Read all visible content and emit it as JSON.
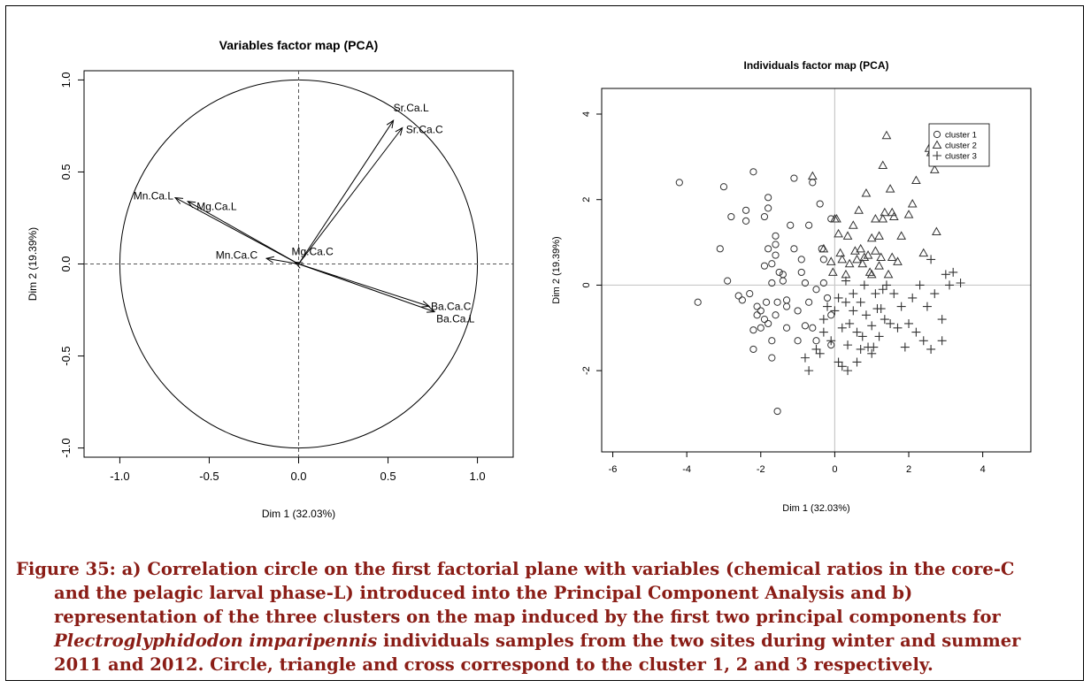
{
  "colors": {
    "caption": "#8a1d16",
    "axis": "#000000",
    "refline": "#c8c8c8"
  },
  "chart_data": [
    {
      "type": "scatter",
      "subtype": "pca-correlation-circle",
      "title": "Variables factor map (PCA)",
      "xlabel": "Dim 1 (32.03%)",
      "ylabel": "Dim 2 (19.39%)",
      "xlim": [
        -1.2,
        1.2
      ],
      "ylim": [
        -1.05,
        1.05
      ],
      "xticks": [
        "-1.0",
        "-0.5",
        "0.0",
        "0.5",
        "1.0"
      ],
      "yticks": [
        "-1.0",
        "-0.5",
        "0.0",
        "0.5",
        "1.0"
      ],
      "unit_circle": true,
      "vectors": [
        {
          "name": "Sr.Ca.L",
          "x": 0.53,
          "y": 0.78
        },
        {
          "name": "Sr.Ca.C",
          "x": 0.58,
          "y": 0.74
        },
        {
          "name": "Mn.Ca.L",
          "x": -0.69,
          "y": 0.36
        },
        {
          "name": "Mg.Ca.L",
          "x": -0.62,
          "y": 0.34
        },
        {
          "name": "Mn.Ca.C",
          "x": -0.18,
          "y": 0.03
        },
        {
          "name": "Mg.Ca.C",
          "x": -0.02,
          "y": 0.01
        },
        {
          "name": "Ba.Ca.C",
          "x": 0.73,
          "y": -0.23
        },
        {
          "name": "Ba.Ca.L",
          "x": 0.76,
          "y": -0.26
        }
      ]
    },
    {
      "type": "scatter",
      "title": "Individuals factor map (PCA)",
      "xlabel": "Dim 1 (32.03%)",
      "ylabel": "Dim 2 (19.39%)",
      "xlim": [
        -6.3,
        5.3
      ],
      "ylim": [
        -3.9,
        4.6
      ],
      "xticks": [
        "-6",
        "-4",
        "-2",
        "0",
        "2",
        "4"
      ],
      "yticks": [
        "-2",
        "0",
        "2",
        "4"
      ],
      "legend_position": "top-right",
      "series": [
        {
          "name": "cluster 1",
          "marker": "circle",
          "points": [
            [
              -4.2,
              2.4
            ],
            [
              -3.7,
              -0.4
            ],
            [
              -3.1,
              0.85
            ],
            [
              -3.0,
              2.3
            ],
            [
              -2.9,
              0.1
            ],
            [
              -2.8,
              1.6
            ],
            [
              -2.5,
              -0.35
            ],
            [
              -2.4,
              1.75
            ],
            [
              -2.4,
              1.5
            ],
            [
              -2.3,
              -0.2
            ],
            [
              -2.2,
              2.65
            ],
            [
              -2.2,
              -1.05
            ],
            [
              -2.2,
              -1.5
            ],
            [
              -2.1,
              -0.5
            ],
            [
              -2.1,
              -0.7
            ],
            [
              -2.0,
              -0.6
            ],
            [
              -1.9,
              1.6
            ],
            [
              -1.9,
              0.45
            ],
            [
              -1.9,
              -0.8
            ],
            [
              -1.85,
              -0.4
            ],
            [
              -1.8,
              2.05
            ],
            [
              -1.8,
              1.8
            ],
            [
              -1.8,
              0.85
            ],
            [
              -1.8,
              -0.9
            ],
            [
              -1.7,
              -1.3
            ],
            [
              -1.7,
              -1.7
            ],
            [
              -1.7,
              0.05
            ],
            [
              -1.6,
              0.95
            ],
            [
              -1.6,
              0.7
            ],
            [
              -1.6,
              1.15
            ],
            [
              -1.6,
              -0.7
            ],
            [
              -1.55,
              -0.4
            ],
            [
              -1.5,
              0.3
            ],
            [
              -1.4,
              0.1
            ],
            [
              -1.4,
              0.25
            ],
            [
              -1.3,
              -0.5
            ],
            [
              -1.3,
              -1.0
            ],
            [
              -1.2,
              1.4
            ],
            [
              -1.1,
              2.5
            ],
            [
              -1.1,
              0.85
            ],
            [
              -1.0,
              -0.6
            ],
            [
              -1.0,
              -1.3
            ],
            [
              -0.9,
              0.3
            ],
            [
              -0.9,
              0.6
            ],
            [
              -0.8,
              -0.95
            ],
            [
              -0.7,
              -0.4
            ],
            [
              -0.7,
              1.4
            ],
            [
              -0.6,
              2.4
            ],
            [
              -0.5,
              -0.1
            ],
            [
              -0.5,
              -1.3
            ],
            [
              -0.4,
              1.9
            ],
            [
              -0.35,
              0.85
            ],
            [
              -0.3,
              0.6
            ],
            [
              -0.3,
              0.05
            ],
            [
              -0.2,
              -0.3
            ],
            [
              -0.1,
              1.55
            ],
            [
              -0.1,
              -0.7
            ],
            [
              -0.1,
              -1.4
            ],
            [
              -2.6,
              -0.25
            ],
            [
              -1.55,
              -2.95
            ],
            [
              -0.6,
              -1.0
            ],
            [
              -1.3,
              -0.35
            ],
            [
              -1.7,
              0.5
            ],
            [
              -0.8,
              0.05
            ],
            [
              -2.0,
              -1.0
            ]
          ]
        },
        {
          "name": "cluster 2",
          "marker": "triangle",
          "points": [
            [
              -0.6,
              2.55
            ],
            [
              -0.3,
              0.85
            ],
            [
              -0.1,
              0.55
            ],
            [
              0.0,
              1.55
            ],
            [
              0.05,
              1.55
            ],
            [
              0.1,
              1.2
            ],
            [
              0.2,
              0.6
            ],
            [
              0.3,
              0.25
            ],
            [
              0.4,
              0.5
            ],
            [
              0.5,
              1.4
            ],
            [
              0.6,
              0.6
            ],
            [
              0.7,
              0.85
            ],
            [
              0.75,
              0.5
            ],
            [
              0.8,
              0.65
            ],
            [
              0.9,
              0.7
            ],
            [
              1.0,
              1.1
            ],
            [
              1.0,
              0.25
            ],
            [
              1.1,
              0.8
            ],
            [
              1.2,
              1.15
            ],
            [
              1.2,
              0.45
            ],
            [
              1.3,
              2.8
            ],
            [
              1.3,
              1.55
            ],
            [
              1.35,
              1.7
            ],
            [
              1.4,
              3.5
            ],
            [
              1.45,
              0.25
            ],
            [
              1.5,
              2.25
            ],
            [
              1.55,
              1.7
            ],
            [
              1.6,
              1.6
            ],
            [
              1.7,
              0.55
            ],
            [
              1.8,
              1.15
            ],
            [
              2.0,
              1.65
            ],
            [
              2.1,
              1.9
            ],
            [
              2.2,
              2.45
            ],
            [
              2.4,
              0.75
            ],
            [
              2.55,
              3.2
            ],
            [
              2.6,
              3.1
            ],
            [
              2.7,
              2.7
            ],
            [
              2.75,
              1.25
            ],
            [
              0.55,
              0.8
            ],
            [
              1.55,
              0.65
            ],
            [
              0.85,
              2.15
            ],
            [
              -0.05,
              0.3
            ],
            [
              0.95,
              0.3
            ],
            [
              0.35,
              1.15
            ],
            [
              1.1,
              1.55
            ],
            [
              1.25,
              0.65
            ],
            [
              0.65,
              1.75
            ],
            [
              0.15,
              0.75
            ]
          ]
        },
        {
          "name": "cluster 3",
          "marker": "cross",
          "points": [
            [
              -0.8,
              -1.7
            ],
            [
              -0.7,
              -2.0
            ],
            [
              -0.5,
              -1.5
            ],
            [
              -0.4,
              -1.6
            ],
            [
              -0.3,
              -0.8
            ],
            [
              -0.3,
              -1.1
            ],
            [
              -0.2,
              -0.5
            ],
            [
              -0.1,
              -1.3
            ],
            [
              0.0,
              -0.6
            ],
            [
              0.1,
              -1.8
            ],
            [
              0.1,
              -0.3
            ],
            [
              0.2,
              -1.0
            ],
            [
              0.2,
              -1.9
            ],
            [
              0.3,
              0.1
            ],
            [
              0.3,
              -0.4
            ],
            [
              0.35,
              -1.4
            ],
            [
              0.4,
              -0.9
            ],
            [
              0.5,
              -0.2
            ],
            [
              0.5,
              -0.6
            ],
            [
              0.6,
              -1.1
            ],
            [
              0.6,
              -1.8
            ],
            [
              0.7,
              -0.4
            ],
            [
              0.7,
              -1.5
            ],
            [
              0.8,
              0.0
            ],
            [
              0.85,
              -0.7
            ],
            [
              0.9,
              -1.45
            ],
            [
              1.0,
              -1.6
            ],
            [
              1.0,
              -0.95
            ],
            [
              1.1,
              -0.2
            ],
            [
              1.15,
              -0.55
            ],
            [
              1.2,
              -1.2
            ],
            [
              1.3,
              -0.1
            ],
            [
              1.35,
              -0.8
            ],
            [
              1.4,
              0.0
            ],
            [
              1.5,
              -0.9
            ],
            [
              1.6,
              -0.2
            ],
            [
              1.7,
              -1.0
            ],
            [
              1.8,
              -0.5
            ],
            [
              1.9,
              -1.45
            ],
            [
              2.0,
              -0.9
            ],
            [
              2.1,
              -0.3
            ],
            [
              2.2,
              -1.1
            ],
            [
              2.3,
              0.0
            ],
            [
              2.4,
              -1.3
            ],
            [
              2.5,
              -0.5
            ],
            [
              2.6,
              0.6
            ],
            [
              2.6,
              -1.5
            ],
            [
              2.7,
              -0.2
            ],
            [
              2.9,
              -0.8
            ],
            [
              2.9,
              -1.3
            ],
            [
              3.0,
              0.25
            ],
            [
              3.1,
              0.0
            ],
            [
              3.2,
              0.3
            ],
            [
              3.4,
              0.05
            ],
            [
              0.35,
              -2.0
            ],
            [
              0.75,
              -1.2
            ],
            [
              1.05,
              -1.45
            ],
            [
              1.25,
              -0.55
            ]
          ]
        }
      ]
    }
  ],
  "caption": {
    "label": "Figure 35: ",
    "line1": "a) Correlation circle on the first factorial plane with variables (chemical ratios in the core-C",
    "line2": "and the pelagic larval phase-L) introduced into the Principal Component Analysis and b)",
    "line3": "representation of the three clusters on the map induced by the first two principal components for",
    "line4_italic": "Plectroglyphidodon imparipennis",
    "line4_rest": " individuals samples from the two sites during winter and summer",
    "line5": "2011 and 2012. Circle, triangle and cross correspond to the cluster 1, 2 and 3 respectively."
  }
}
